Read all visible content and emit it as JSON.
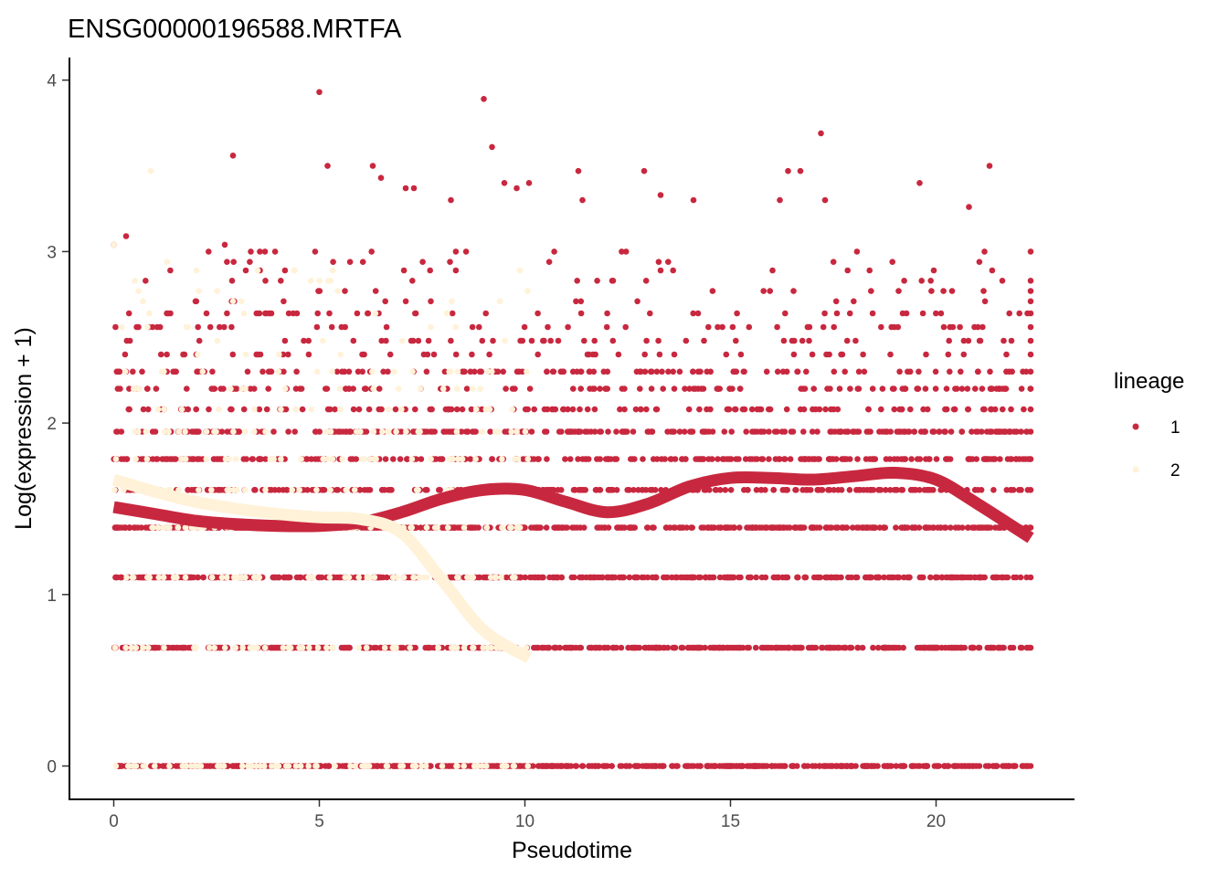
{
  "chart_data": {
    "type": "scatter",
    "title": "ENSG00000196588.MRTFA",
    "xlabel": "Pseudotime",
    "ylabel": "Log(expression + 1)",
    "xlim": [
      -1.1,
      23.3
    ],
    "ylim": [
      -0.2,
      4.12
    ],
    "xticks": [
      0,
      5,
      10,
      15,
      20
    ],
    "yticks": [
      0,
      1,
      2,
      3,
      4
    ],
    "grid": false,
    "legend": {
      "title": "lineage",
      "position": "right"
    },
    "series": [
      {
        "name": "1",
        "color": "#C8283F",
        "x_range": [
          0,
          22.3
        ],
        "expression_levels": [
          0,
          0.69,
          1.1,
          1.39,
          1.61,
          1.79,
          1.95,
          2.08,
          2.2,
          2.3,
          2.4,
          2.48,
          2.56,
          2.64,
          2.71,
          2.77,
          2.83,
          2.89,
          2.94,
          3.0
        ],
        "high_points": [
          [
            5.0,
            3.93
          ],
          [
            9.0,
            3.89
          ],
          [
            9.2,
            3.61
          ],
          [
            2.9,
            3.56
          ],
          [
            17.2,
            3.69
          ],
          [
            21.3,
            3.5
          ],
          [
            5.2,
            3.5
          ],
          [
            6.3,
            3.5
          ],
          [
            11.3,
            3.47
          ],
          [
            12.9,
            3.47
          ],
          [
            16.4,
            3.47
          ],
          [
            16.7,
            3.47
          ],
          [
            6.5,
            3.43
          ],
          [
            9.5,
            3.4
          ],
          [
            10.1,
            3.4
          ],
          [
            19.6,
            3.4
          ],
          [
            9.8,
            3.37
          ],
          [
            13.3,
            3.33
          ],
          [
            7.1,
            3.37
          ],
          [
            7.3,
            3.37
          ],
          [
            8.2,
            3.3
          ],
          [
            11.4,
            3.3
          ],
          [
            14.1,
            3.3
          ],
          [
            16.2,
            3.3
          ],
          [
            17.3,
            3.3
          ],
          [
            20.8,
            3.26
          ],
          [
            2.7,
            3.04
          ],
          [
            0.3,
            3.09
          ],
          [
            0.0,
            3.04
          ],
          [
            22.3,
            3.0
          ]
        ],
        "curve": {
          "x": [
            0,
            1,
            2,
            3,
            4,
            5,
            6,
            7,
            8,
            9,
            10,
            11,
            12,
            13,
            14,
            15,
            16,
            17,
            18,
            19,
            20,
            21,
            22.3
          ],
          "y": [
            1.51,
            1.47,
            1.43,
            1.41,
            1.4,
            1.4,
            1.42,
            1.48,
            1.56,
            1.61,
            1.61,
            1.54,
            1.48,
            1.53,
            1.63,
            1.68,
            1.68,
            1.67,
            1.69,
            1.71,
            1.67,
            1.53,
            1.33
          ]
        }
      },
      {
        "name": "2",
        "color": "#FFF2D8",
        "x_range": [
          0,
          10.1
        ],
        "expression_levels": [
          0,
          0.69,
          1.1,
          1.39,
          1.61,
          1.79,
          1.95,
          2.08,
          2.2,
          2.3,
          2.4,
          2.48,
          2.56,
          2.64,
          2.71,
          2.77,
          2.83,
          2.89
        ],
        "high_points": [
          [
            0.9,
            3.47
          ],
          [
            0.0,
            3.04
          ],
          [
            1.3,
            2.94
          ],
          [
            3.5,
            2.89
          ],
          [
            4.4,
            2.89
          ],
          [
            5.0,
            2.83
          ],
          [
            2.9,
            2.71
          ],
          [
            0.6,
            2.77
          ],
          [
            0.2,
            2.56
          ],
          [
            1.8,
            2.56
          ]
        ],
        "curve": {
          "x": [
            0,
            1,
            2,
            3,
            4,
            5,
            6,
            7,
            8,
            9,
            10.1
          ],
          "y": [
            1.67,
            1.6,
            1.54,
            1.5,
            1.47,
            1.45,
            1.44,
            1.36,
            1.08,
            0.79,
            0.63
          ]
        }
      }
    ]
  }
}
